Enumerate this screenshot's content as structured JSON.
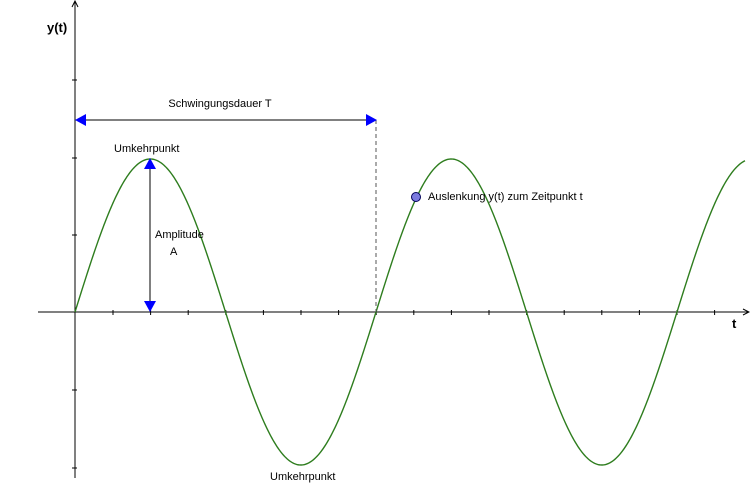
{
  "diagram": {
    "y_axis_label": "y(t)",
    "x_axis_label": "t",
    "period_label": "Schwingungsdauer T",
    "amplitude_label_line1": "Amplitude",
    "amplitude_label_line2": "A",
    "top_turning_point_label": "Umkehrpunkt",
    "bottom_turning_point_label": "Umkehrpunkt",
    "point_label": "Auslenkung y(t) zum Zeitpunkt t"
  },
  "colors": {
    "curve": "#2e7d1e",
    "arrow": "#0000ff",
    "point_fill": "#7b7bde",
    "point_stroke": "#00005a",
    "axis": "#000000",
    "dashed": "#555555"
  }
}
